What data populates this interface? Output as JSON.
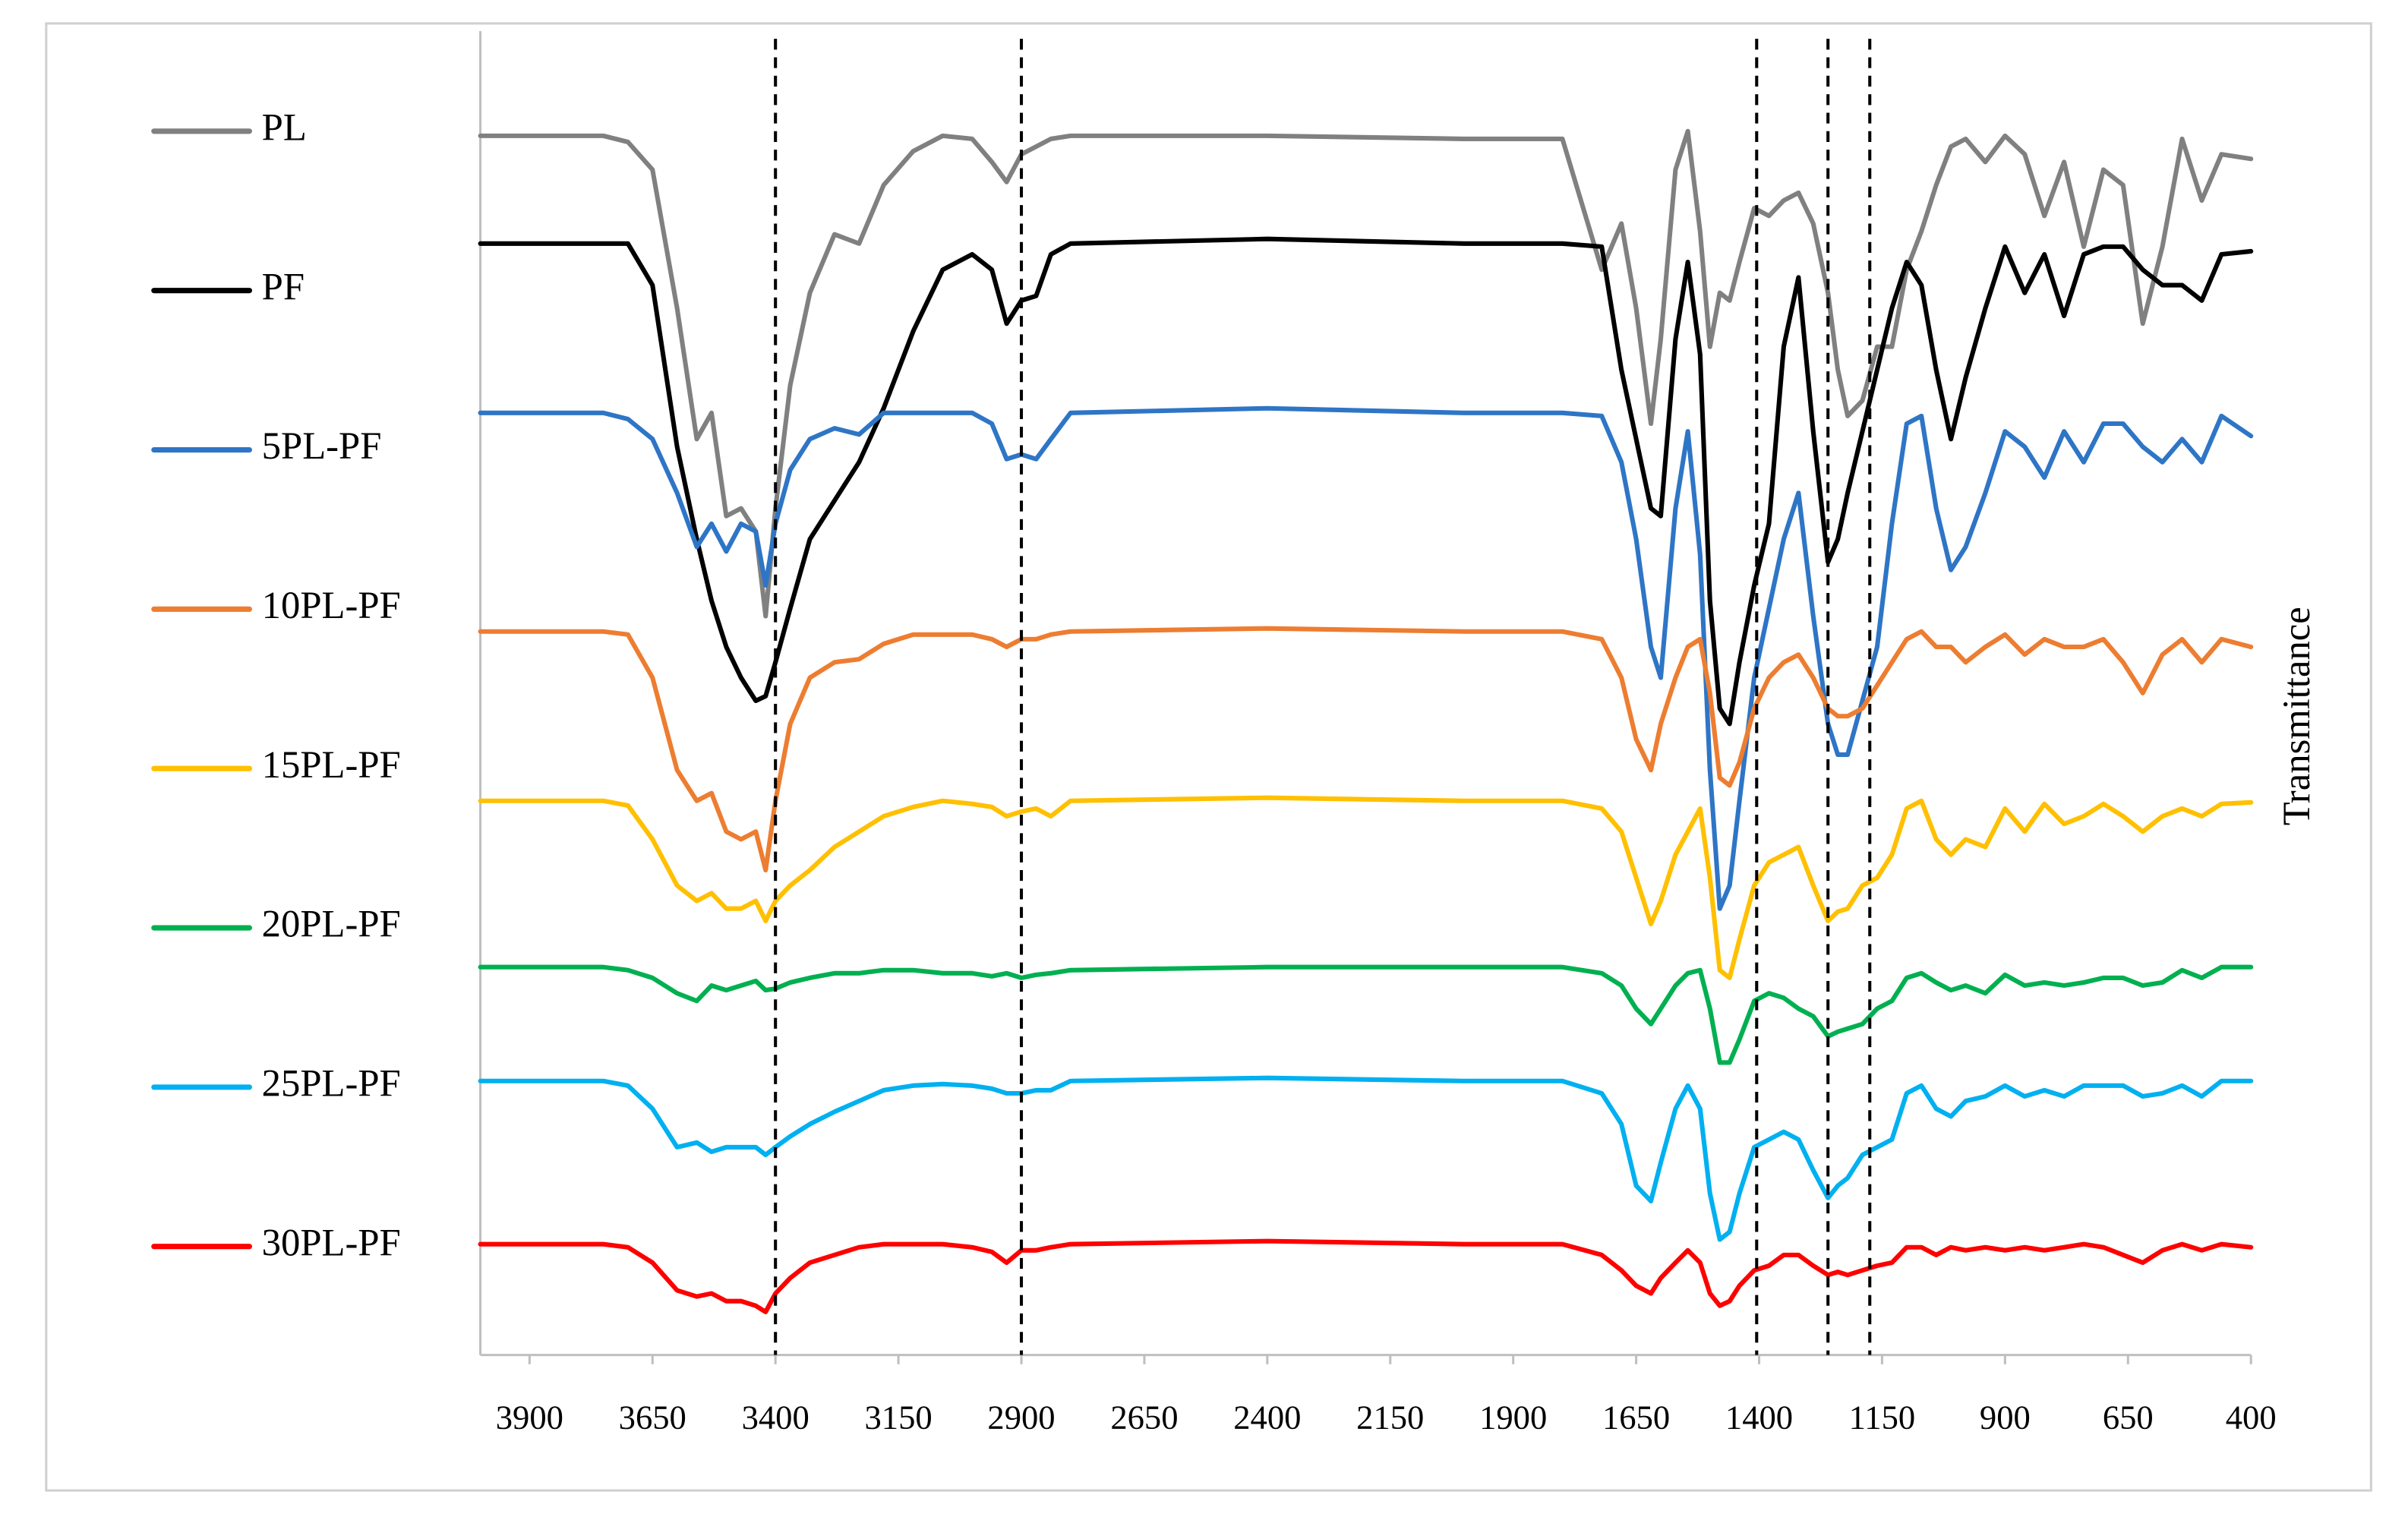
{
  "chart_data": {
    "type": "line",
    "y_label": "Transmittance",
    "legend": "left",
    "xlim": [
      4000,
      400
    ],
    "ylim": [
      2,
      88
    ],
    "xticks": [
      3900,
      3650,
      3400,
      3150,
      2900,
      2650,
      2400,
      2150,
      1900,
      1650,
      1400,
      1150,
      900,
      650,
      400
    ],
    "reference_lines": [
      3400,
      2900,
      1405,
      1260,
      1175
    ],
    "x": [
      4000,
      3750,
      3700,
      3650,
      3600,
      3560,
      3530,
      3500,
      3470,
      3440,
      3420,
      3400,
      3370,
      3330,
      3280,
      3230,
      3180,
      3120,
      3060,
      3000,
      2960,
      2930,
      2900,
      2870,
      2840,
      2800,
      2400,
      2000,
      1800,
      1720,
      1680,
      1650,
      1620,
      1600,
      1570,
      1545,
      1520,
      1500,
      1480,
      1460,
      1440,
      1410,
      1380,
      1350,
      1320,
      1290,
      1260,
      1240,
      1220,
      1190,
      1160,
      1130,
      1100,
      1070,
      1040,
      1010,
      980,
      940,
      900,
      860,
      820,
      780,
      740,
      700,
      660,
      620,
      580,
      540,
      500,
      460,
      400
    ],
    "series": [
      {
        "name": "PL",
        "color": "#808080",
        "values": [
          81.2,
          81.2,
          80.8,
          79,
          70,
          61.5,
          63.2,
          56.5,
          57,
          55.5,
          50,
          57,
          65,
          71,
          74.8,
          74.2,
          78,
          80.2,
          81.2,
          81,
          79.5,
          78.2,
          80,
          80.5,
          81,
          81.2,
          81.2,
          81,
          81,
          72.5,
          75.5,
          70,
          62.5,
          68,
          79,
          81.5,
          75,
          67.5,
          71,
          70.5,
          73,
          76.5,
          76,
          77,
          77.5,
          75.5,
          71,
          66,
          63,
          64,
          67.5,
          67.5,
          72.5,
          75,
          78,
          80.5,
          81,
          79.5,
          81.2,
          80,
          76,
          79.5,
          74,
          79,
          78,
          69,
          74,
          81,
          77,
          80,
          79.7
        ]
      },
      {
        "name": "PF",
        "color": "#000000",
        "values": [
          74.2,
          74.2,
          74.2,
          71.5,
          61,
          55,
          51,
          48,
          46,
          44.5,
          44.8,
          47,
          50.5,
          55,
          57.5,
          60,
          63.5,
          68.5,
          72.5,
          73.5,
          72.5,
          69,
          70.5,
          70.8,
          73.5,
          74.2,
          74.5,
          74.2,
          74.2,
          74,
          66,
          61.5,
          57,
          56.5,
          68,
          73,
          67,
          51,
          44,
          43,
          47,
          52,
          56,
          67.5,
          72,
          62,
          53.5,
          55,
          58,
          62,
          66,
          70,
          73,
          71.5,
          66,
          61.5,
          65.5,
          70,
          74,
          71,
          73.5,
          69.5,
          73.5,
          74,
          74,
          72.5,
          71.5,
          71.5,
          70.5,
          73.5,
          73.7
        ]
      },
      {
        "name": "5PL-PF",
        "color": "#2e75c6",
        "values": [
          63.2,
          63.2,
          62.8,
          61.5,
          58,
          54.5,
          56,
          54.2,
          56,
          55.5,
          52,
          56,
          59.5,
          61.5,
          62.2,
          61.8,
          63.2,
          63.2,
          63.2,
          63.2,
          62.5,
          60.2,
          60.5,
          60.2,
          61.5,
          63.2,
          63.5,
          63.2,
          63.2,
          63,
          60,
          55,
          48,
          46,
          57,
          62,
          54,
          40,
          31,
          32.5,
          38,
          46,
          50.5,
          55,
          58,
          50,
          43,
          41,
          41,
          44.5,
          48,
          56,
          62.5,
          63,
          57,
          53,
          54.5,
          58,
          62,
          61,
          59,
          62,
          60,
          62.5,
          62.5,
          61,
          60,
          61.5,
          60,
          63,
          61.7
        ]
      },
      {
        "name": "10PL-PF",
        "color": "#ed7d31",
        "values": [
          49,
          49,
          48.8,
          46,
          40,
          38,
          38.5,
          36,
          35.5,
          36,
          33.5,
          38,
          43,
          46,
          47,
          47.2,
          48.2,
          48.8,
          48.8,
          48.8,
          48.5,
          48,
          48.5,
          48.5,
          48.8,
          49,
          49.2,
          49,
          49,
          48.5,
          46,
          42,
          40,
          43,
          46,
          48,
          48.5,
          45,
          39.5,
          39,
          40.5,
          44,
          46,
          47,
          47.5,
          46,
          44,
          43.5,
          43.5,
          44,
          45.5,
          47,
          48.5,
          49,
          48,
          48,
          47,
          48,
          48.8,
          47.5,
          48.5,
          48,
          48,
          48.5,
          47,
          45,
          47.5,
          48.5,
          47,
          48.5,
          48
        ]
      },
      {
        "name": "15PL-PF",
        "color": "#ffc000",
        "values": [
          38,
          38,
          37.7,
          35.5,
          32.5,
          31.5,
          32,
          31,
          31,
          31.5,
          30.2,
          31.5,
          32.5,
          33.5,
          35,
          36,
          37,
          37.6,
          38,
          37.8,
          37.6,
          37,
          37.3,
          37.5,
          37,
          38,
          38.2,
          38,
          38,
          37.5,
          36,
          33,
          30,
          31.5,
          34.5,
          36,
          37.5,
          33,
          27,
          26.5,
          29,
          32.5,
          34,
          34.5,
          35,
          32.5,
          30.2,
          30.8,
          31,
          32.5,
          33,
          34.5,
          37.5,
          38,
          35.5,
          34.5,
          35.5,
          35,
          37.5,
          36,
          37.8,
          36.5,
          37,
          37.8,
          37,
          36,
          37,
          37.5,
          37,
          37.8,
          37.9
        ]
      },
      {
        "name": "20PL-PF",
        "color": "#00b050",
        "values": [
          27.2,
          27.2,
          27,
          26.5,
          25.5,
          25,
          26,
          25.7,
          26,
          26.3,
          25.7,
          25.8,
          26.2,
          26.5,
          26.8,
          26.8,
          27,
          27,
          26.8,
          26.8,
          26.6,
          26.8,
          26.5,
          26.7,
          26.8,
          27,
          27.2,
          27.2,
          27.2,
          26.8,
          26,
          24.5,
          23.5,
          24.5,
          26,
          26.8,
          27,
          24.5,
          21,
          21,
          22.5,
          25,
          25.5,
          25.2,
          24.5,
          24,
          22.7,
          23,
          23.2,
          23.5,
          24.5,
          25,
          26.5,
          26.8,
          26.2,
          25.7,
          26,
          25.5,
          26.7,
          26,
          26.2,
          26,
          26.2,
          26.5,
          26.5,
          26,
          26.2,
          27,
          26.5,
          27.2,
          27.2
        ]
      },
      {
        "name": "25PL-PF",
        "color": "#00b0f0",
        "values": [
          19.8,
          19.8,
          19.5,
          18,
          15.5,
          15.8,
          15.2,
          15.5,
          15.5,
          15.5,
          15,
          15.5,
          16.2,
          17,
          17.8,
          18.5,
          19.2,
          19.5,
          19.6,
          19.5,
          19.3,
          19,
          19,
          19.2,
          19.2,
          19.8,
          20,
          19.8,
          19.8,
          19,
          17,
          13,
          12,
          14.5,
          18,
          19.5,
          18,
          12.5,
          9.5,
          10,
          12.5,
          15.5,
          16,
          16.5,
          16,
          14,
          12.2,
          13,
          13.5,
          15,
          15.5,
          16,
          19,
          19.5,
          18,
          17.5,
          18.5,
          18.8,
          19.5,
          18.8,
          19.2,
          18.8,
          19.5,
          19.5,
          19.5,
          18.8,
          19,
          19.5,
          18.8,
          19.8,
          19.8
        ]
      },
      {
        "name": "30PL-PF",
        "color": "#ff0000",
        "values": [
          9.2,
          9.2,
          9,
          8,
          6.2,
          5.8,
          6,
          5.5,
          5.5,
          5.2,
          4.8,
          6,
          7,
          8,
          8.5,
          9,
          9.2,
          9.2,
          9.2,
          9,
          8.7,
          8,
          8.8,
          8.8,
          9,
          9.2,
          9.4,
          9.2,
          9.2,
          8.5,
          7.5,
          6.5,
          6,
          7,
          8,
          8.8,
          8,
          6,
          5.2,
          5.5,
          6.5,
          7.5,
          7.8,
          8.5,
          8.5,
          7.8,
          7.2,
          7.4,
          7.2,
          7.5,
          7.8,
          8,
          9,
          9,
          8.5,
          9,
          8.8,
          9,
          8.8,
          9,
          8.8,
          9,
          9.2,
          9,
          8.5,
          8,
          8.8,
          9.2,
          8.8,
          9.2,
          9
        ]
      }
    ]
  }
}
